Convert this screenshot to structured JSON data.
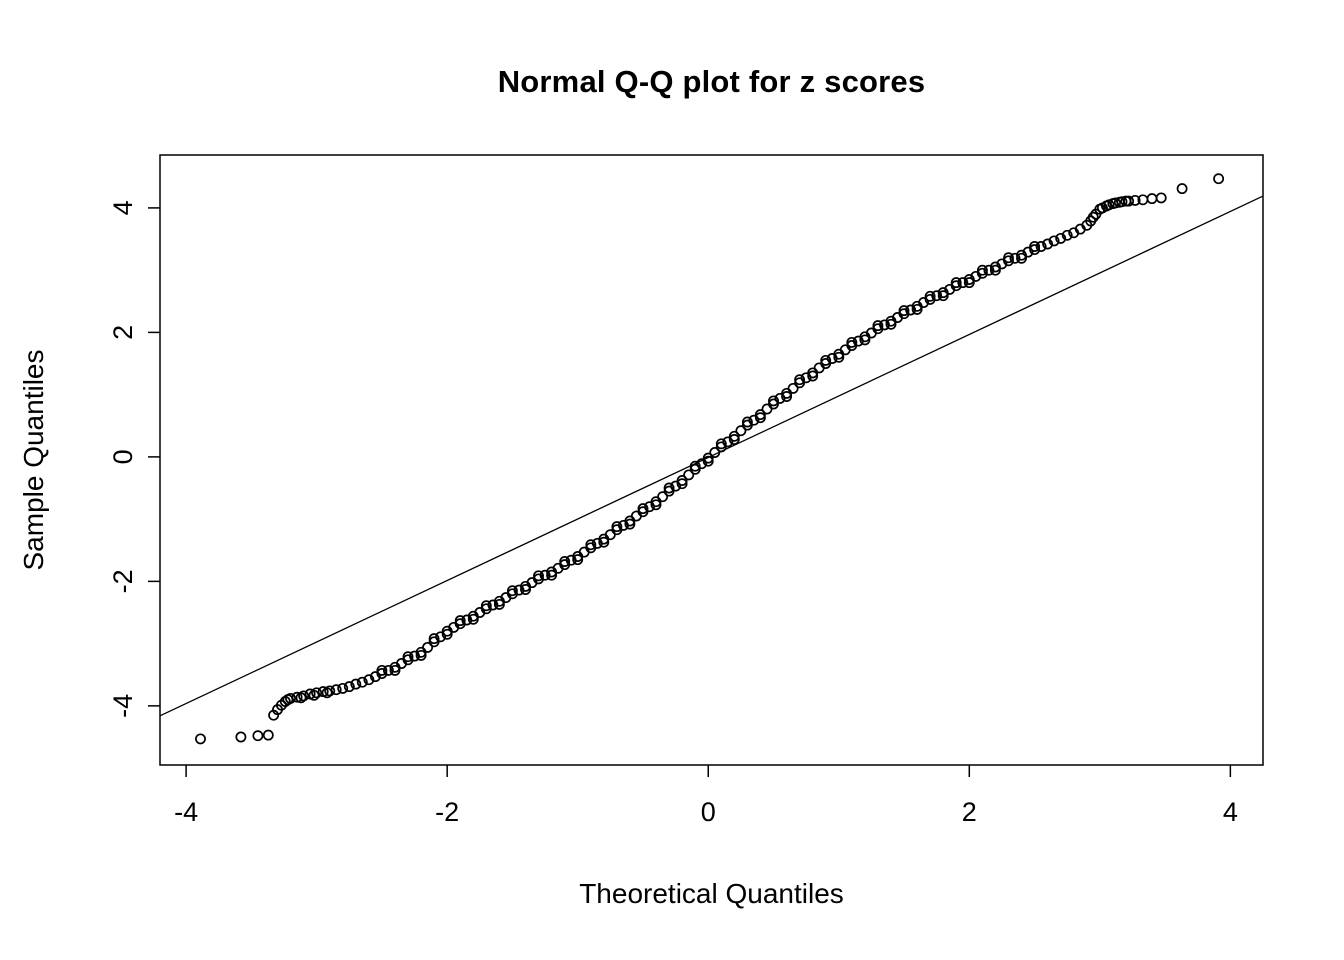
{
  "colors": {
    "foreground": "#000000",
    "background": "#ffffff"
  },
  "chart_data": {
    "type": "scatter",
    "subtype": "normal-qq-plot",
    "title": "Normal Q-Q plot for z scores",
    "xlabel": "Theoretical Quantiles",
    "ylabel": "Sample Quantiles",
    "xlim": [
      -4.2,
      4.25
    ],
    "ylim": [
      -4.95,
      4.85
    ],
    "x_ticks": [
      "-4",
      "-2",
      "0",
      "2",
      "4"
    ],
    "y_ticks": [
      "-4",
      "-2",
      "0",
      "2",
      "4"
    ],
    "x_tick_values": [
      -4,
      -2,
      0,
      2,
      4
    ],
    "y_tick_values": [
      -4,
      -2,
      0,
      2,
      4
    ],
    "grid": false,
    "legend": "none",
    "marker": "open-circle",
    "reference_line": {
      "x1": -4.2,
      "y1": -4.16,
      "x2": 4.25,
      "y2": 4.19
    },
    "points": [
      [
        -3.89,
        -4.53
      ],
      [
        -3.58,
        -4.5
      ],
      [
        -3.45,
        -4.48
      ],
      [
        -3.37,
        -4.47
      ],
      [
        -3.33,
        -4.15
      ],
      [
        -3.3,
        -4.06
      ],
      [
        -3.27,
        -3.99
      ],
      [
        -3.24,
        -3.93
      ],
      [
        -3.22,
        -3.9
      ],
      [
        -3.2,
        -3.88
      ],
      [
        -3.15,
        -3.86
      ],
      [
        -3.1,
        -3.84
      ],
      [
        -3.05,
        -3.81
      ],
      [
        -3.0,
        -3.79
      ],
      [
        -2.95,
        -3.77
      ],
      [
        -2.9,
        -3.76
      ],
      [
        -2.85,
        -3.74
      ],
      [
        -2.8,
        -3.72
      ],
      [
        -2.75,
        -3.69
      ],
      [
        -2.7,
        -3.65
      ],
      [
        -2.65,
        -3.62
      ],
      [
        -2.6,
        -3.58
      ],
      [
        -2.55,
        -3.53
      ],
      [
        -2.5,
        -3.48
      ],
      [
        -2.45,
        -3.43
      ],
      [
        -2.4,
        -3.38
      ],
      [
        -2.35,
        -3.32
      ],
      [
        -2.3,
        -3.26
      ],
      [
        -2.25,
        -3.2
      ],
      [
        -2.2,
        -3.14
      ],
      [
        -2.15,
        -3.06
      ],
      [
        -2.1,
        -2.97
      ],
      [
        -2.05,
        -2.89
      ],
      [
        -2.0,
        -2.8
      ],
      [
        -1.95,
        -2.74
      ],
      [
        -1.9,
        -2.68
      ],
      [
        -1.85,
        -2.62
      ],
      [
        -1.8,
        -2.56
      ],
      [
        -1.75,
        -2.5
      ],
      [
        -1.7,
        -2.44
      ],
      [
        -1.65,
        -2.38
      ],
      [
        -1.6,
        -2.32
      ],
      [
        -1.55,
        -2.26
      ],
      [
        -1.5,
        -2.2
      ],
      [
        -1.45,
        -2.14
      ],
      [
        -1.4,
        -2.08
      ],
      [
        -1.35,
        -2.02
      ],
      [
        -1.3,
        -1.96
      ],
      [
        -1.25,
        -1.9
      ],
      [
        -1.2,
        -1.85
      ],
      [
        -1.15,
        -1.79
      ],
      [
        -1.1,
        -1.73
      ],
      [
        -1.05,
        -1.66
      ],
      [
        -1.0,
        -1.6
      ],
      [
        -0.95,
        -1.53
      ],
      [
        -0.9,
        -1.46
      ],
      [
        -0.85,
        -1.39
      ],
      [
        -0.8,
        -1.32
      ],
      [
        -0.75,
        -1.25
      ],
      [
        -0.7,
        -1.17
      ],
      [
        -0.65,
        -1.1
      ],
      [
        -0.6,
        -1.03
      ],
      [
        -0.55,
        -0.95
      ],
      [
        -0.5,
        -0.88
      ],
      [
        -0.45,
        -0.8
      ],
      [
        -0.4,
        -0.72
      ],
      [
        -0.35,
        -0.64
      ],
      [
        -0.3,
        -0.55
      ],
      [
        -0.25,
        -0.47
      ],
      [
        -0.2,
        -0.38
      ],
      [
        -0.15,
        -0.29
      ],
      [
        -0.1,
        -0.2
      ],
      [
        -0.05,
        -0.11
      ],
      [
        0.0,
        -0.02
      ],
      [
        0.05,
        0.07
      ],
      [
        0.1,
        0.16
      ],
      [
        0.15,
        0.24
      ],
      [
        0.2,
        0.33
      ],
      [
        0.25,
        0.42
      ],
      [
        0.3,
        0.51
      ],
      [
        0.35,
        0.59
      ],
      [
        0.4,
        0.68
      ],
      [
        0.45,
        0.77
      ],
      [
        0.5,
        0.85
      ],
      [
        0.55,
        0.94
      ],
      [
        0.6,
        1.02
      ],
      [
        0.65,
        1.1
      ],
      [
        0.7,
        1.19
      ],
      [
        0.75,
        1.27
      ],
      [
        0.8,
        1.35
      ],
      [
        0.85,
        1.43
      ],
      [
        0.9,
        1.5
      ],
      [
        0.95,
        1.58
      ],
      [
        1.0,
        1.65
      ],
      [
        1.05,
        1.72
      ],
      [
        1.1,
        1.79
      ],
      [
        1.15,
        1.86
      ],
      [
        1.2,
        1.93
      ],
      [
        1.25,
        1.99
      ],
      [
        1.3,
        2.06
      ],
      [
        1.35,
        2.12
      ],
      [
        1.4,
        2.18
      ],
      [
        1.45,
        2.24
      ],
      [
        1.5,
        2.3
      ],
      [
        1.55,
        2.36
      ],
      [
        1.6,
        2.42
      ],
      [
        1.65,
        2.48
      ],
      [
        1.7,
        2.53
      ],
      [
        1.75,
        2.59
      ],
      [
        1.8,
        2.64
      ],
      [
        1.85,
        2.69
      ],
      [
        1.9,
        2.75
      ],
      [
        1.95,
        2.8
      ],
      [
        2.0,
        2.85
      ],
      [
        2.05,
        2.9
      ],
      [
        2.1,
        2.95
      ],
      [
        2.15,
        3.0
      ],
      [
        2.2,
        3.05
      ],
      [
        2.25,
        3.1
      ],
      [
        2.3,
        3.15
      ],
      [
        2.35,
        3.19
      ],
      [
        2.4,
        3.24
      ],
      [
        2.45,
        3.29
      ],
      [
        2.5,
        3.33
      ],
      [
        2.55,
        3.38
      ],
      [
        2.6,
        3.42
      ],
      [
        2.65,
        3.47
      ],
      [
        2.7,
        3.51
      ],
      [
        2.75,
        3.56
      ],
      [
        2.8,
        3.6
      ],
      [
        2.85,
        3.66
      ],
      [
        2.9,
        3.72
      ],
      [
        2.95,
        3.85
      ],
      [
        3.0,
        3.98
      ],
      [
        3.05,
        4.03
      ],
      [
        3.1,
        4.07
      ],
      [
        3.15,
        4.09
      ],
      [
        3.2,
        4.11
      ],
      [
        -2.5,
        -3.43
      ],
      [
        -2.3,
        -3.21
      ],
      [
        -2.1,
        -2.92
      ],
      [
        -1.9,
        -2.63
      ],
      [
        -1.7,
        -2.39
      ],
      [
        -1.5,
        -2.15
      ],
      [
        -1.3,
        -1.91
      ],
      [
        -1.1,
        -1.68
      ],
      [
        -0.9,
        -1.41
      ],
      [
        -0.7,
        -1.12
      ],
      [
        -0.5,
        -0.83
      ],
      [
        -0.3,
        -0.5
      ],
      [
        -0.1,
        -0.15
      ],
      [
        0.1,
        0.21
      ],
      [
        0.3,
        0.56
      ],
      [
        0.5,
        0.9
      ],
      [
        0.7,
        1.24
      ],
      [
        0.9,
        1.55
      ],
      [
        1.1,
        1.84
      ],
      [
        1.3,
        2.11
      ],
      [
        1.5,
        2.35
      ],
      [
        1.7,
        2.58
      ],
      [
        1.9,
        2.8
      ],
      [
        2.1,
        3.0
      ],
      [
        2.3,
        3.2
      ],
      [
        2.5,
        3.38
      ],
      [
        -2.4,
        -3.43
      ],
      [
        -2.2,
        -3.19
      ],
      [
        -2.0,
        -2.85
      ],
      [
        -1.8,
        -2.61
      ],
      [
        -1.6,
        -2.37
      ],
      [
        -1.4,
        -2.13
      ],
      [
        -1.2,
        -1.9
      ],
      [
        -1.0,
        -1.65
      ],
      [
        -0.8,
        -1.37
      ],
      [
        -0.6,
        -1.08
      ],
      [
        -0.4,
        -0.77
      ],
      [
        -0.2,
        -0.43
      ],
      [
        0.0,
        -0.07
      ],
      [
        0.2,
        0.28
      ],
      [
        0.4,
        0.63
      ],
      [
        0.6,
        0.97
      ],
      [
        0.8,
        1.3
      ],
      [
        1.0,
        1.6
      ],
      [
        1.2,
        1.88
      ],
      [
        1.4,
        2.13
      ],
      [
        1.6,
        2.37
      ],
      [
        1.8,
        2.59
      ],
      [
        2.0,
        2.8
      ],
      [
        2.2,
        3.0
      ],
      [
        2.4,
        3.19
      ],
      [
        -3.12,
        -3.87
      ],
      [
        -3.02,
        -3.83
      ],
      [
        -2.92,
        -3.79
      ],
      [
        2.93,
        3.79
      ],
      [
        2.97,
        3.9
      ],
      [
        3.02,
        4.0
      ],
      [
        3.07,
        4.05
      ],
      [
        3.12,
        4.08
      ],
      [
        3.17,
        4.1
      ],
      [
        3.22,
        4.11
      ],
      [
        3.27,
        4.12
      ],
      [
        3.33,
        4.13
      ],
      [
        3.4,
        4.15
      ],
      [
        3.47,
        4.16
      ],
      [
        3.63,
        4.31
      ],
      [
        3.91,
        4.47
      ]
    ]
  }
}
